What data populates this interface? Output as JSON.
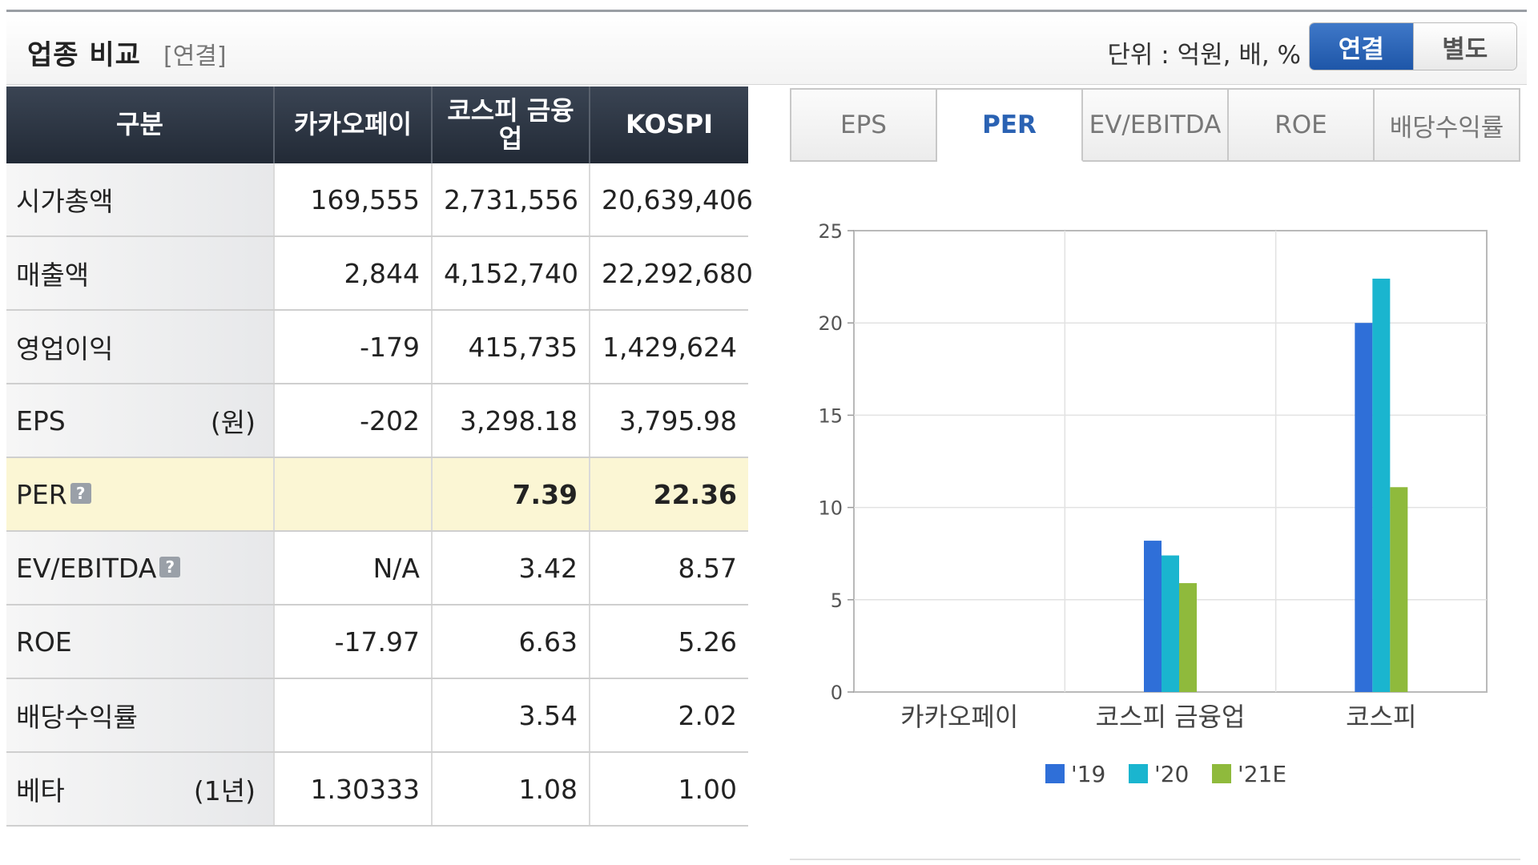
{
  "header": {
    "title": "업종 비교",
    "subtitle": "[연결]",
    "unit": "단위 : 억원, 배, %",
    "toggle": {
      "consolidated": "연결",
      "separate": "별도"
    }
  },
  "table": {
    "headers": [
      "구분",
      "카카오페이",
      "코스피 금융업",
      "KOSPI"
    ],
    "rows": [
      {
        "label": "시가총액",
        "unit": "",
        "help": "",
        "values": [
          "169,555",
          "2,731,556",
          "20,639,406"
        ]
      },
      {
        "label": "매출액",
        "unit": "",
        "help": "",
        "values": [
          "2,844",
          "4,152,740",
          "22,292,680"
        ]
      },
      {
        "label": "영업이익",
        "unit": "",
        "help": "",
        "values": [
          "-179",
          "415,735",
          "1,429,624"
        ]
      },
      {
        "label": "EPS",
        "unit": "(원)",
        "help": "",
        "values": [
          "-202",
          "3,298.18",
          "3,795.98"
        ]
      },
      {
        "label": "PER",
        "unit": "",
        "help": "?",
        "values": [
          "",
          "7.39",
          "22.36"
        ]
      },
      {
        "label": "EV/EBITDA",
        "unit": "",
        "help": "?",
        "values": [
          "N/A",
          "3.42",
          "8.57"
        ]
      },
      {
        "label": "ROE",
        "unit": "",
        "help": "",
        "values": [
          "-17.97",
          "6.63",
          "5.26"
        ]
      },
      {
        "label": "배당수익률",
        "unit": "",
        "help": "",
        "values": [
          "",
          "3.54",
          "2.02"
        ]
      },
      {
        "label": "베타",
        "unit": "(1년)",
        "help": "",
        "values": [
          "1.30333",
          "1.08",
          "1.00"
        ]
      }
    ],
    "highlight_row": "PER",
    "negative_color": "#b01515",
    "highlight_color": "#fbf6d4"
  },
  "tabs": [
    "EPS",
    "PER",
    "EV/EBITDA",
    "ROE",
    "배당수익률"
  ],
  "active_tab": "PER",
  "chart_data": {
    "type": "bar",
    "categories": [
      "카카오페이",
      "코스피 금융업",
      "코스피"
    ],
    "series": [
      {
        "name": "'19",
        "color": "#2f6fd8",
        "values": [
          null,
          8.2,
          20.0
        ]
      },
      {
        "name": "'20",
        "color": "#1ab5cf",
        "values": [
          null,
          7.4,
          22.4
        ]
      },
      {
        "name": "'21E",
        "color": "#8fba3c",
        "values": [
          null,
          5.9,
          11.1
        ]
      }
    ],
    "ylim": [
      0,
      25
    ],
    "yticks": [
      "0",
      "5",
      "10",
      "15",
      "20",
      "25"
    ],
    "title": "",
    "xlabel": "",
    "ylabel": "",
    "grid": true,
    "legend": "bottom"
  }
}
